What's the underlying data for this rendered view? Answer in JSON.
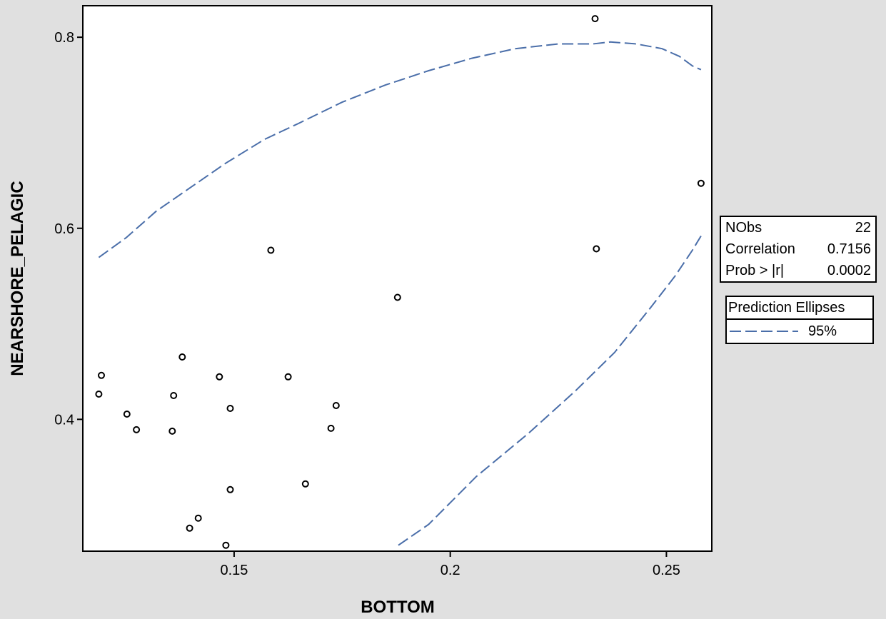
{
  "chart_data": {
    "type": "scatter",
    "xlabel": "BOTTOM",
    "ylabel": "NEARSHORE_PELAGIC",
    "xlim": [
      0.115,
      0.2605
    ],
    "ylim": [
      0.262,
      0.833
    ],
    "xticks": [
      0.15,
      0.2,
      0.25
    ],
    "xtick_labels": [
      "0.15",
      "0.2",
      "0.25"
    ],
    "yticks": [
      0.4,
      0.6,
      0.8
    ],
    "ytick_labels": [
      "0.4",
      "0.6",
      "0.8"
    ],
    "grid": false,
    "points": [
      {
        "x": 0.1187,
        "y": 0.4264
      },
      {
        "x": 0.1193,
        "y": 0.446
      },
      {
        "x": 0.1252,
        "y": 0.4055
      },
      {
        "x": 0.1274,
        "y": 0.3891
      },
      {
        "x": 0.1357,
        "y": 0.3876
      },
      {
        "x": 0.136,
        "y": 0.4249
      },
      {
        "x": 0.138,
        "y": 0.4653
      },
      {
        "x": 0.1397,
        "y": 0.2861
      },
      {
        "x": 0.1417,
        "y": 0.2966
      },
      {
        "x": 0.1466,
        "y": 0.4445
      },
      {
        "x": 0.1481,
        "y": 0.2682
      },
      {
        "x": 0.1491,
        "y": 0.3264
      },
      {
        "x": 0.1491,
        "y": 0.4115
      },
      {
        "x": 0.1585,
        "y": 0.577
      },
      {
        "x": 0.1625,
        "y": 0.4445
      },
      {
        "x": 0.1665,
        "y": 0.3324
      },
      {
        "x": 0.1724,
        "y": 0.3906
      },
      {
        "x": 0.1736,
        "y": 0.4145
      },
      {
        "x": 0.1878,
        "y": 0.5277
      },
      {
        "x": 0.2335,
        "y": 0.8195
      },
      {
        "x": 0.2338,
        "y": 0.5785
      },
      {
        "x": 0.258,
        "y": 0.6471
      }
    ],
    "ellipse_segments": [
      {
        "name": "95%",
        "points": [
          [
            0.1187,
            0.5695
          ],
          [
            0.125,
            0.59
          ],
          [
            0.132,
            0.618
          ],
          [
            0.14,
            0.643
          ],
          [
            0.148,
            0.668
          ],
          [
            0.157,
            0.693
          ],
          [
            0.165,
            0.71
          ],
          [
            0.175,
            0.732
          ],
          [
            0.185,
            0.75
          ],
          [
            0.195,
            0.765
          ],
          [
            0.205,
            0.778
          ],
          [
            0.215,
            0.788
          ],
          [
            0.225,
            0.793
          ],
          [
            0.233,
            0.793
          ],
          [
            0.237,
            0.795
          ],
          [
            0.243,
            0.793
          ],
          [
            0.249,
            0.788
          ],
          [
            0.253,
            0.78
          ],
          [
            0.256,
            0.77
          ],
          [
            0.258,
            0.766
          ]
        ]
      },
      {
        "name": "95%",
        "points": [
          [
            0.188,
            0.2682
          ],
          [
            0.195,
            0.29
          ],
          [
            0.206,
            0.34
          ],
          [
            0.218,
            0.385
          ],
          [
            0.229,
            0.43
          ],
          [
            0.238,
            0.47
          ],
          [
            0.246,
            0.515
          ],
          [
            0.252,
            0.55
          ],
          [
            0.256,
            0.577
          ],
          [
            0.258,
            0.592
          ]
        ]
      }
    ],
    "ellipse_color": "#4a6ea9",
    "stats": [
      {
        "label": "NObs",
        "value": "22"
      },
      {
        "label": "Correlation",
        "value": "0.7156"
      },
      {
        "label": "Prob > |r|",
        "value": "0.0002"
      }
    ],
    "legend": {
      "title": "Prediction Ellipses",
      "entries": [
        {
          "label": "95%",
          "color": "#4a6ea9",
          "dash": true
        }
      ],
      "placement": "right"
    }
  }
}
